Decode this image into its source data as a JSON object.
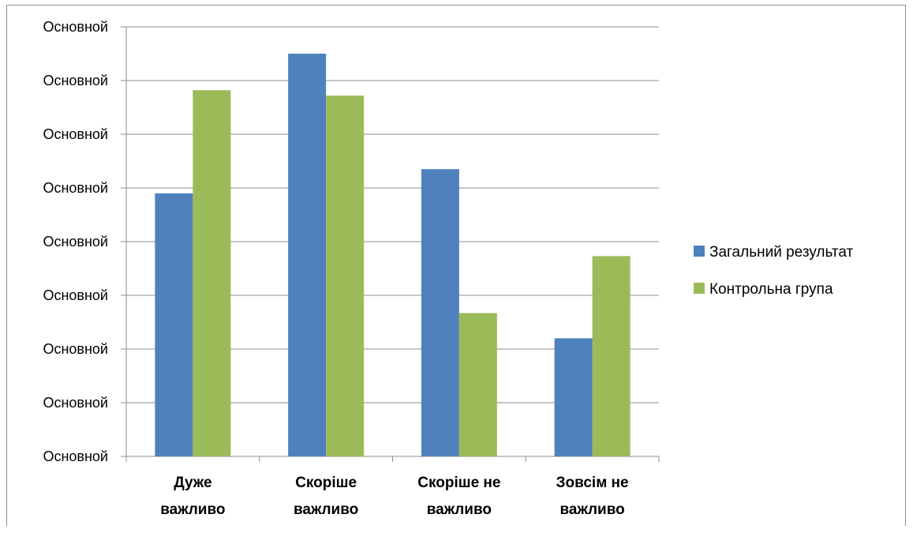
{
  "chart_data": {
    "type": "bar",
    "title": "",
    "xlabel": "",
    "ylabel": "",
    "categories": [
      [
        "Дуже",
        "важливо"
      ],
      [
        "Скоріше",
        "важливо"
      ],
      [
        "Скоріше не",
        "важливо"
      ],
      [
        "Зовсім не",
        "важливо"
      ]
    ],
    "y_tick_labels": [
      "Основной",
      "Основной",
      "Основной",
      "Основной",
      "Основной",
      "Основной",
      "Основной",
      "Основной",
      "Основной"
    ],
    "ylim": [
      0,
      8
    ],
    "grid": true,
    "legend_position": "right",
    "series": [
      {
        "name": "Загальний результат",
        "color": "#4f81bd",
        "values": [
          4.9,
          7.5,
          5.35,
          2.2
        ]
      },
      {
        "name": "Контрольна група",
        "color": "#9bbb59",
        "values": [
          6.82,
          6.72,
          2.67,
          3.73
        ]
      }
    ]
  }
}
